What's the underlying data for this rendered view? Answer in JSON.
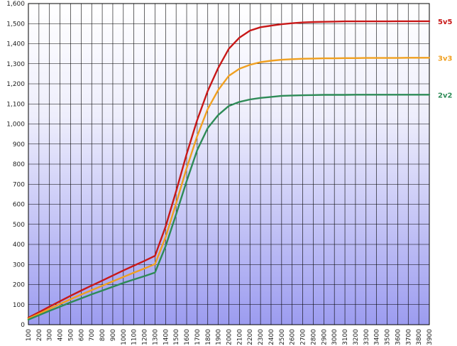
{
  "chart_data": {
    "type": "line",
    "title": "",
    "xlabel": "",
    "ylabel": "",
    "x": [
      100,
      200,
      300,
      400,
      500,
      600,
      700,
      800,
      900,
      1000,
      1100,
      1200,
      1300,
      1400,
      1500,
      1600,
      1700,
      1800,
      1900,
      2000,
      2100,
      2200,
      2300,
      2400,
      2500,
      2600,
      2700,
      2800,
      2900,
      3000,
      3100,
      3200,
      3300,
      3400,
      3500,
      3600,
      3700,
      3800,
      3900
    ],
    "xlim": [
      100,
      3900
    ],
    "ylim": [
      0,
      1600
    ],
    "y_ticks": [
      0,
      100,
      200,
      300,
      400,
      500,
      600,
      700,
      800,
      900,
      1000,
      1100,
      1200,
      1300,
      1400,
      1500,
      1600
    ],
    "y_tick_labels": [
      "0",
      "100",
      "200",
      "300",
      "400",
      "500",
      "600",
      "700",
      "800",
      "900",
      "1,000",
      "1,100",
      "1,200",
      "1,300",
      "1,400",
      "1,500",
      "1,600"
    ],
    "x_tick_labels": [
      "100",
      "200",
      "300",
      "400",
      "500",
      "600",
      "700",
      "800",
      "900",
      "1000",
      "1100",
      "1200",
      "1300",
      "1400",
      "1500",
      "1600",
      "1700",
      "1800",
      "1900",
      "2000",
      "2100",
      "2200",
      "2300",
      "2400",
      "2500",
      "2600",
      "2700",
      "2800",
      "2900",
      "3000",
      "3100",
      "3200",
      "3300",
      "3400",
      "3500",
      "3600",
      "3700",
      "3800",
      "3900"
    ],
    "grid": true,
    "series": [
      {
        "name": "5v5",
        "color": "#c81818",
        "values": [
          35,
          62,
          90,
          117,
          144,
          170,
          195,
          220,
          245,
          270,
          294,
          318,
          343,
          488,
          665,
          850,
          1020,
          1165,
          1280,
          1375,
          1430,
          1465,
          1482,
          1490,
          1497,
          1502,
          1506,
          1508,
          1509,
          1510,
          1511,
          1511,
          1511,
          1511,
          1511,
          1512,
          1512,
          1512,
          1512
        ]
      },
      {
        "name": "3v3",
        "color": "#f0a020",
        "values": [
          30,
          54,
          79,
          103,
          127,
          150,
          172,
          194,
          216,
          238,
          259,
          280,
          302,
          435,
          605,
          780,
          940,
          1075,
          1170,
          1240,
          1275,
          1295,
          1308,
          1315,
          1320,
          1323,
          1325,
          1326,
          1327,
          1327,
          1328,
          1328,
          1329,
          1329,
          1329,
          1329,
          1330,
          1330,
          1330
        ]
      },
      {
        "name": "2v2",
        "color": "#2e8b57",
        "values": [
          25,
          47,
          69,
          90,
          111,
          131,
          151,
          170,
          189,
          208,
          225,
          242,
          260,
          390,
          550,
          715,
          870,
          980,
          1045,
          1090,
          1110,
          1122,
          1130,
          1135,
          1140,
          1142,
          1143,
          1144,
          1145,
          1145,
          1145,
          1146,
          1146,
          1146,
          1146,
          1146,
          1146,
          1146,
          1146
        ]
      }
    ]
  }
}
